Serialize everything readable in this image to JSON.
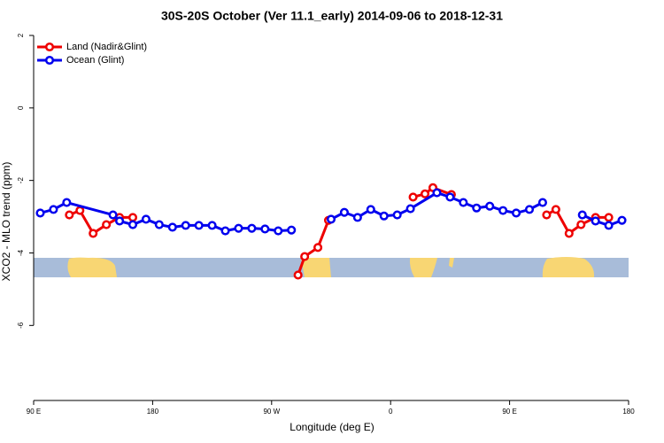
{
  "chart_data": {
    "type": "line",
    "title": "30S-20S October (Ver 11.1_early)   2014-09-06 to 2018-12-31",
    "x_label": "Longitude (deg E)",
    "y_label": "XCO2 - MLO trend (ppm)",
    "xlim": [
      90,
      540
    ],
    "ylim": [
      -8.07,
      2
    ],
    "xticks": [
      {
        "value": 90,
        "label": "90 E"
      },
      {
        "value": 180,
        "label": "180"
      },
      {
        "value": 270,
        "label": "90 W"
      },
      {
        "value": 360,
        "label": "0"
      },
      {
        "value": 450,
        "label": "90 E"
      },
      {
        "value": 540,
        "label": "180"
      }
    ],
    "yticks": [
      2,
      0,
      -2,
      -4,
      -6
    ],
    "legend": "top-left",
    "series": [
      {
        "name": "Land (Nadir&Glint)",
        "color": "#ee0000",
        "x": [
          117,
          125,
          135,
          145,
          155,
          165,
          230,
          290,
          295,
          305,
          313,
          340,
          377,
          386,
          392,
          406,
          440,
          478,
          485,
          495,
          504,
          515,
          525
        ],
        "values": [
          -2.95,
          -2.83,
          -3.46,
          -3.22,
          -3.02,
          -3.02,
          null,
          -4.61,
          -4.1,
          -3.85,
          -3.1,
          null,
          -2.46,
          -2.37,
          -2.2,
          -2.39,
          null,
          -2.95,
          -2.8,
          -3.46,
          -3.22,
          -3.02,
          -3.02
        ]
      },
      {
        "name": "Ocean (Glint)",
        "color": "#0000ee",
        "x": [
          95,
          105,
          115,
          150,
          155,
          165,
          175,
          185,
          195,
          205,
          215,
          225,
          235,
          245,
          255,
          265,
          275,
          285,
          300,
          315,
          325,
          335,
          345,
          355,
          365,
          375,
          395,
          405,
          415,
          425,
          435,
          445,
          455,
          465,
          475,
          490,
          505,
          515,
          525,
          535
        ],
        "values": [
          -2.9,
          -2.8,
          -2.61,
          -2.95,
          -3.12,
          -3.22,
          -3.07,
          -3.22,
          -3.29,
          -3.24,
          -3.24,
          -3.24,
          -3.39,
          -3.32,
          -3.32,
          -3.34,
          -3.39,
          -3.37,
          null,
          -3.07,
          -2.88,
          -3.02,
          -2.8,
          -2.98,
          -2.95,
          -2.78,
          -2.34,
          -2.46,
          -2.61,
          -2.76,
          -2.71,
          -2.83,
          -2.9,
          -2.8,
          -2.61,
          null,
          -2.95,
          -3.12,
          -3.24,
          -3.1
        ]
      }
    ]
  }
}
